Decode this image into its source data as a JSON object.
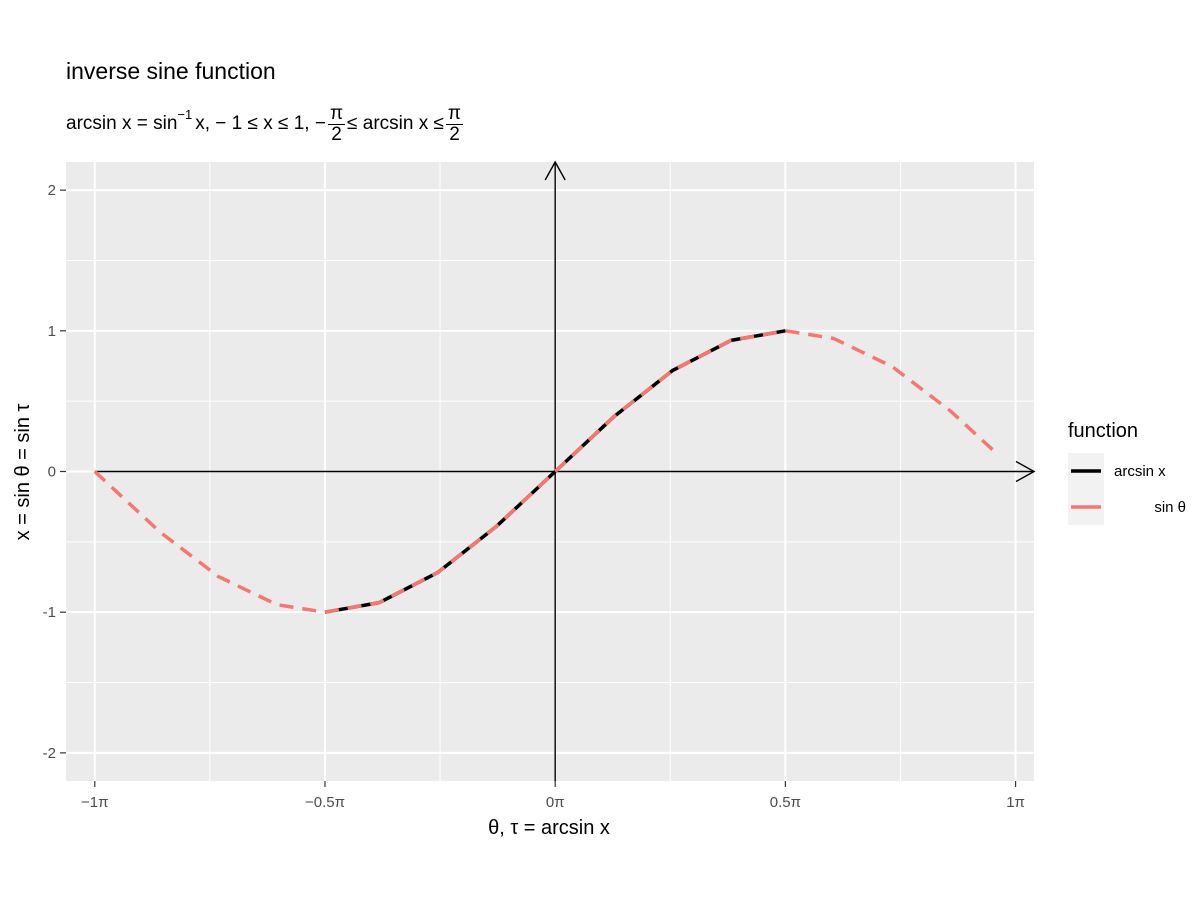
{
  "title": "inverse sine function",
  "subtitle": {
    "lhs": "arcsin x = sin",
    "sup": "−1",
    "mid": "x, − 1 ≤ x ≤ 1, −",
    "frac1_num": "π",
    "frac1_den": "2",
    "rel": "≤ arcsin x ≤",
    "frac2_num": "π",
    "frac2_den": "2"
  },
  "chart_data": {
    "type": "line",
    "xlabel": "θ, τ = arcsin x",
    "ylabel": "x = sin θ = sin τ",
    "xlim": [
      -3.3379,
      3.2673
    ],
    "ylim": [
      -2.2,
      2.2
    ],
    "x_ticks": [
      {
        "value": -3.1416,
        "label": "−1π"
      },
      {
        "value": -1.5708,
        "label": "−0.5π"
      },
      {
        "value": 0,
        "label": "0π"
      },
      {
        "value": 1.5708,
        "label": "0.5π"
      },
      {
        "value": 3.1416,
        "label": "1π"
      }
    ],
    "y_ticks": [
      {
        "value": -2,
        "label": "-2"
      },
      {
        "value": -1,
        "label": "-1"
      },
      {
        "value": 0,
        "label": "0"
      },
      {
        "value": 1,
        "label": "1"
      },
      {
        "value": 2,
        "label": "2"
      }
    ],
    "x_minor": [
      -2.3562,
      -0.7854,
      0.7854,
      2.3562
    ],
    "y_minor": [
      -1.5,
      -0.5,
      0.5,
      1.5
    ],
    "series": [
      {
        "name": "arcsin x",
        "color": "#000000",
        "dash": "solid",
        "x": [
          -1.5708,
          -1.2,
          -0.8,
          -0.4,
          0,
          0.4,
          0.8,
          1.2,
          1.5708
        ],
        "y": [
          -1,
          -0.932,
          -0.717,
          -0.389,
          0,
          0.389,
          0.717,
          0.932,
          1
        ]
      },
      {
        "name": "sin θ",
        "color": "#f8766d",
        "dash": "dashed",
        "x": [
          -3.1416,
          -2.7,
          -2.3,
          -1.9,
          -1.5708,
          -1.2,
          -0.8,
          -0.4,
          0,
          0.4,
          0.8,
          1.2,
          1.5708,
          1.9,
          2.3,
          2.7,
          3.0
        ],
        "y": [
          0,
          -0.427,
          -0.746,
          -0.946,
          -1,
          -0.932,
          -0.717,
          -0.389,
          0,
          0.389,
          0.717,
          0.932,
          1,
          0.946,
          0.746,
          0.427,
          0.141
        ]
      }
    ],
    "legend": {
      "title": "function",
      "position": "right",
      "entries": [
        "arcsin x",
        "sin θ"
      ]
    },
    "background": "#ebebeb",
    "grid": true,
    "axis_arrows": true
  }
}
